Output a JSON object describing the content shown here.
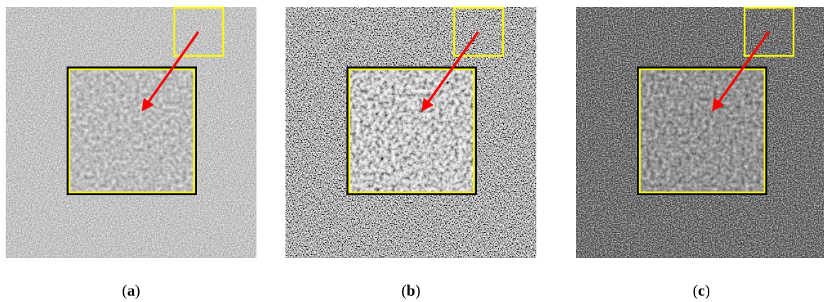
{
  "panels": [
    {
      "label_parts": [
        "(",
        "a",
        ")"
      ]
    },
    {
      "label_parts": [
        "(",
        "b",
        ")"
      ]
    },
    {
      "label_parts": [
        "(",
        "c",
        ")"
      ]
    }
  ]
}
